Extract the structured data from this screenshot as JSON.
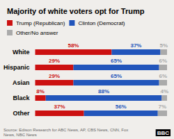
{
  "chart_data": {
    "type": "bar",
    "title": "Majority of white voters opt for Trump",
    "orientation": "horizontal",
    "stacked": true,
    "data_labels": true,
    "categories": [
      "White",
      "Hispanic",
      "Asian",
      "Black",
      "Other"
    ],
    "series": [
      {
        "name": "Trump (Republican)",
        "color": "#cc1111",
        "values": [
          58,
          29,
          29,
          8,
          37
        ],
        "value_labels": [
          "58%",
          "29%",
          "29%",
          "8%",
          "37%"
        ]
      },
      {
        "name": "Clinton (Democrat)",
        "color": "#2255bb",
        "values": [
          37,
          65,
          65,
          88,
          56
        ],
        "value_labels": [
          "37%",
          "65%",
          "65%",
          "88%",
          "56%"
        ]
      },
      {
        "name": "Other/No answer",
        "color": "#aaaaaa",
        "values": [
          5,
          6,
          6,
          4,
          7
        ],
        "value_labels": [
          "5%",
          "6%",
          "6%",
          "4%",
          "7%"
        ]
      }
    ],
    "xlim": [
      0,
      100
    ],
    "tick_labels": "y",
    "grid": false,
    "legend": "top-left",
    "annotations": [
      "Source: Edison Research for ABC News, AP, CBS News, CNN, Fox News, NBC News",
      "BBC"
    ]
  }
}
